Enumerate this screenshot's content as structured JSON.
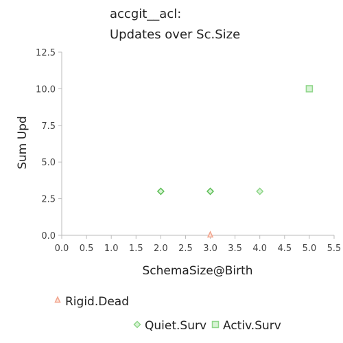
{
  "chart_data": {
    "type": "scatter",
    "title_line1": "accgit__acl:",
    "title_line2": "Updates over Sc.Size",
    "xlabel": "SchemaSize@Birth",
    "ylabel": "Sum Upd",
    "xlim": [
      0.0,
      5.5
    ],
    "ylim": [
      0.0,
      12.5
    ],
    "xticks": [
      "0.0",
      "0.5",
      "1.0",
      "1.5",
      "2.0",
      "2.5",
      "3.0",
      "3.5",
      "4.0",
      "4.5",
      "5.0",
      "5.5"
    ],
    "yticks": [
      "0.0",
      "2.5",
      "5.0",
      "7.5",
      "10.0",
      "12.5"
    ],
    "grid": false,
    "legend_position": "bottom",
    "series": [
      {
        "name": "Rigid.Dead",
        "marker": "triangle",
        "color": "#f2a58e",
        "points": [
          [
            3.0,
            0.0
          ]
        ]
      },
      {
        "name": "Quiet.Surv",
        "marker": "diamond",
        "color": "#8fd68a",
        "points": [
          [
            2.0,
            3.0
          ],
          [
            3.0,
            3.0
          ],
          [
            4.0,
            3.0
          ]
        ]
      },
      {
        "name": "Activ.Surv",
        "marker": "square",
        "color": "#8fd68a",
        "points": [
          [
            5.0,
            10.0
          ]
        ]
      }
    ]
  }
}
